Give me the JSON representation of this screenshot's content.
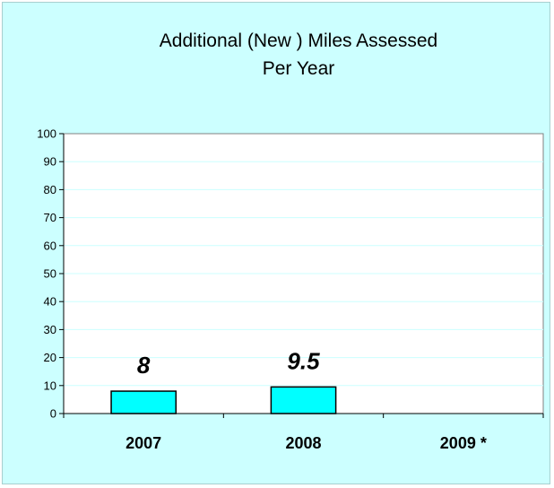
{
  "chart_data": {
    "type": "bar",
    "title_lines": [
      "Additional (New ) Miles Assessed",
      "Per Year"
    ],
    "categories": [
      "2007",
      "2008",
      "2009 *"
    ],
    "values": [
      8,
      9.5,
      null
    ],
    "data_labels": [
      "8",
      "9.5",
      ""
    ],
    "xlabel": "",
    "ylabel": "",
    "ylim": [
      0,
      100
    ],
    "yticks": [
      0,
      10,
      20,
      30,
      40,
      50,
      60,
      70,
      80,
      90,
      100
    ],
    "grid": true,
    "legend": "none",
    "colors": {
      "background": "#ccffff",
      "plot_area": "#ffffff",
      "bar_fill": "#00ffff",
      "bar_stroke": "#000000",
      "gridline": "#ccffff",
      "axis": "#808080"
    }
  }
}
